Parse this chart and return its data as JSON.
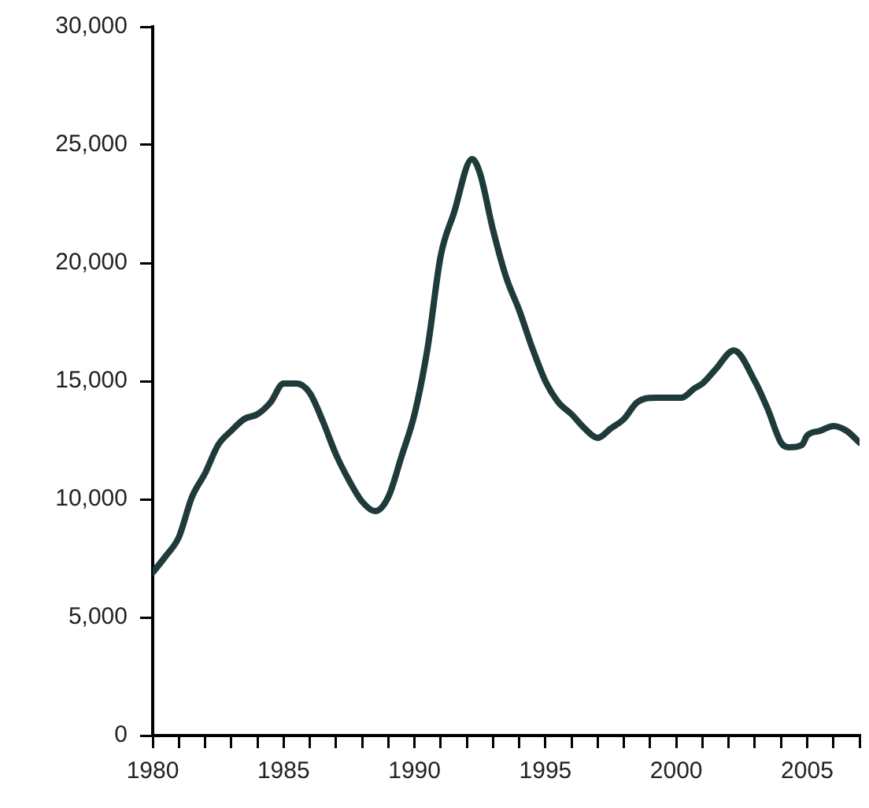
{
  "chart_data": {
    "type": "line",
    "grid": false,
    "legend": false,
    "marker": "none",
    "line_style": "solid",
    "xlim": [
      1980,
      2007
    ],
    "xticks": [
      1980,
      {
        "value": 1981,
        "label": null
      },
      {
        "value": 1982,
        "label": null
      },
      {
        "value": 1983,
        "label": null
      },
      {
        "value": 1984,
        "label": null
      },
      1985,
      {
        "value": 1986,
        "label": null
      },
      {
        "value": 1987,
        "label": null
      },
      {
        "value": 1988,
        "label": null
      },
      {
        "value": 1989,
        "label": null
      },
      1990,
      {
        "value": 1991,
        "label": null
      },
      {
        "value": 1992,
        "label": null
      },
      {
        "value": 1993,
        "label": null
      },
      {
        "value": 1994,
        "label": null
      },
      1995,
      {
        "value": 1996,
        "label": null
      },
      {
        "value": 1997,
        "label": null
      },
      {
        "value": 1998,
        "label": null
      },
      {
        "value": 1999,
        "label": null
      },
      2000,
      {
        "value": 2001,
        "label": null
      },
      {
        "value": 2002,
        "label": null
      },
      {
        "value": 2003,
        "label": null
      },
      {
        "value": 2004,
        "label": null
      },
      2005,
      {
        "value": 2006,
        "label": null
      },
      {
        "value": 2007,
        "label": null
      }
    ],
    "ylim": [
      0,
      30000
    ],
    "yticks": [
      {
        "value": 0,
        "label": "0"
      },
      {
        "value": 5000,
        "label": "5,000"
      },
      {
        "value": 10000,
        "label": "10,000"
      },
      {
        "value": 15000,
        "label": "15,000"
      },
      {
        "value": 20000,
        "label": "20,000"
      },
      {
        "value": 25000,
        "label": "25,000"
      },
      {
        "value": 30000,
        "label": "30,000"
      }
    ],
    "series": [
      {
        "color": "#1e3b3a",
        "x": [
          1980,
          1980.5,
          1981,
          1981.5,
          1982,
          1982.5,
          1983,
          1983.5,
          1984,
          1984.5,
          1985,
          1985.5,
          1986,
          1986.5,
          1987,
          1987.5,
          1988,
          1988.5,
          1989,
          1989.5,
          1990,
          1990.5,
          1991,
          1991.5,
          1992.2,
          1992.5,
          1993,
          1993.5,
          1994,
          1994.5,
          1995,
          1995.5,
          1996,
          1996.5,
          1997,
          1997.5,
          1998,
          1998.5,
          1999.2,
          2000.2,
          2000.7,
          2001,
          2001.5,
          2002.2,
          2003,
          2003.5,
          2004,
          2004.3,
          2004.8,
          2005,
          2005.5,
          2006,
          2006.5,
          2007
        ],
        "values": [
          6900,
          7600,
          8400,
          10100,
          11100,
          12300,
          12900,
          13400,
          13600,
          14100,
          14900,
          14900,
          14500,
          13300,
          11900,
          10800,
          9900,
          9500,
          10100,
          11800,
          13600,
          16400,
          20300,
          22100,
          24400,
          23800,
          21400,
          19400,
          18000,
          16400,
          15000,
          14100,
          13600,
          13000,
          12600,
          13000,
          13400,
          14100,
          14300,
          14300,
          14700,
          14900,
          15500,
          16300,
          15000,
          13800,
          12400,
          12200,
          12300,
          12700,
          12900,
          13100,
          12900,
          12400
        ]
      }
    ]
  }
}
